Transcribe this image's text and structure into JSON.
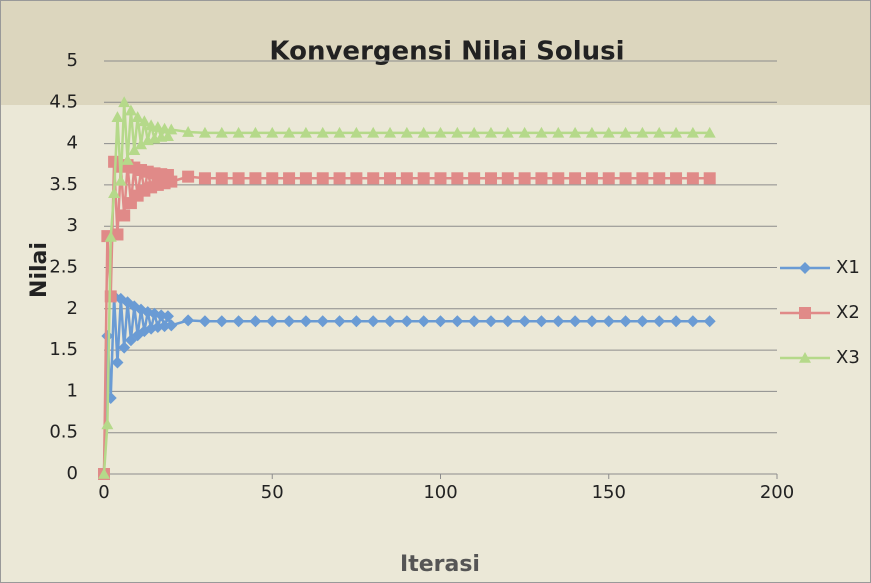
{
  "chart_data": {
    "type": "line",
    "title": "Konvergensi Nilai Solusi",
    "x_label": "Iterasi",
    "y_label": "Nilai",
    "x": [
      0,
      1,
      2,
      3,
      4,
      5,
      6,
      7,
      8,
      9,
      10,
      11,
      12,
      13,
      14,
      15,
      16,
      17,
      18,
      19,
      20,
      25,
      30,
      35,
      40,
      45,
      50,
      55,
      60,
      65,
      70,
      75,
      80,
      85,
      90,
      95,
      100,
      105,
      110,
      115,
      120,
      125,
      130,
      135,
      140,
      145,
      150,
      155,
      160,
      165,
      170,
      175,
      180
    ],
    "series": [
      {
        "name": "X1",
        "color": "#6a9bd4",
        "marker": "diamond",
        "values": [
          0,
          1.67,
          0.92,
          2.15,
          1.35,
          2.12,
          1.53,
          2.08,
          1.62,
          2.03,
          1.68,
          1.99,
          1.73,
          1.96,
          1.76,
          1.94,
          1.78,
          1.92,
          1.79,
          1.91,
          1.8,
          1.86,
          1.85,
          1.85,
          1.85,
          1.85,
          1.85,
          1.85,
          1.85,
          1.85,
          1.85,
          1.85,
          1.85,
          1.85,
          1.85,
          1.85,
          1.85,
          1.85,
          1.85,
          1.85,
          1.85,
          1.85,
          1.85,
          1.85,
          1.85,
          1.85,
          1.85,
          1.85,
          1.85,
          1.85,
          1.85,
          1.85,
          1.85
        ]
      },
      {
        "name": "X2",
        "color": "#e08a88",
        "marker": "square",
        "values": [
          0,
          2.88,
          2.15,
          3.78,
          2.9,
          3.72,
          3.13,
          3.74,
          3.28,
          3.71,
          3.37,
          3.68,
          3.43,
          3.66,
          3.47,
          3.64,
          3.5,
          3.63,
          3.52,
          3.62,
          3.54,
          3.6,
          3.58,
          3.58,
          3.58,
          3.58,
          3.58,
          3.58,
          3.58,
          3.58,
          3.58,
          3.58,
          3.58,
          3.58,
          3.58,
          3.58,
          3.58,
          3.58,
          3.58,
          3.58,
          3.58,
          3.58,
          3.58,
          3.58,
          3.58,
          3.58,
          3.58,
          3.58,
          3.58,
          3.58,
          3.58,
          3.58,
          3.58
        ]
      },
      {
        "name": "X3",
        "color": "#b5d98a",
        "marker": "triangle",
        "values": [
          0,
          0.6,
          2.87,
          3.4,
          4.32,
          3.55,
          4.5,
          3.8,
          4.4,
          3.92,
          4.32,
          3.99,
          4.27,
          4.04,
          4.22,
          4.06,
          4.2,
          4.08,
          4.18,
          4.09,
          4.17,
          4.14,
          4.13,
          4.13,
          4.13,
          4.13,
          4.13,
          4.13,
          4.13,
          4.13,
          4.13,
          4.13,
          4.13,
          4.13,
          4.13,
          4.13,
          4.13,
          4.13,
          4.13,
          4.13,
          4.13,
          4.13,
          4.13,
          4.13,
          4.13,
          4.13,
          4.13,
          4.13,
          4.13,
          4.13,
          4.13,
          4.13,
          4.13
        ]
      }
    ],
    "xlim": [
      0,
      200
    ],
    "xticks": [
      0,
      50,
      100,
      150,
      200
    ],
    "ylim": [
      0,
      5
    ],
    "yticks": [
      0,
      0.5,
      1,
      1.5,
      2,
      2.5,
      3,
      3.5,
      4,
      4.5,
      5
    ],
    "grid": true,
    "legend": "right"
  }
}
